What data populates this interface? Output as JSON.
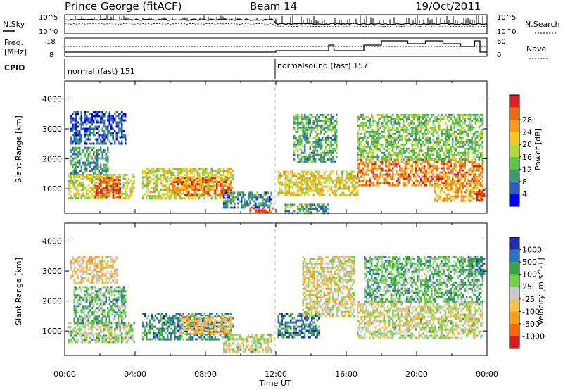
{
  "header": {
    "station": "Prince George (fitACF)",
    "beam": "Beam 14",
    "date": "19/Oct/2011"
  },
  "top_labels": {
    "nsky": "N.Sky",
    "nsearch": "N.Search",
    "freq_line1": "Freq.",
    "freq_line2": "[MHz]",
    "nave": "Nave",
    "cpid": "CPID",
    "nsky_ticks": [
      "10^5",
      "10^0"
    ],
    "nsearch_ticks": [
      "10^5",
      "10^0"
    ],
    "freq_ticks": [
      "18",
      "8"
    ],
    "nave_ticks": [
      "60",
      "0"
    ]
  },
  "cpid_segments": [
    {
      "label": "normal (fast) 151",
      "start_hour": 0
    },
    {
      "label": "normalsound (fast) 157",
      "start_hour": 12
    }
  ],
  "colors": {
    "power": [
      "#0000ff",
      "#2e5fbf",
      "#3f9a6f",
      "#66c24e",
      "#b2d93a",
      "#f0c81e",
      "#f59a1c",
      "#f06a10",
      "#e02020"
    ],
    "velocity": [
      "#e01a1a",
      "#ff6a00",
      "#ff9f19",
      "#f5c24a",
      "#c8c8c8",
      "#6fd04a",
      "#3aa04a",
      "#2c6fc0",
      "#1c2ea8"
    ]
  },
  "chart_data": [
    {
      "name": "power",
      "type": "heatmap",
      "x_range_hours": [
        0,
        24
      ],
      "ylim": [
        180,
        4600
      ],
      "ylabel": "Slant Range [km]",
      "xlabel": "Time UT",
      "yticks": [
        1000,
        2000,
        3000,
        4000
      ],
      "xticks": [
        "00:00",
        "04:00",
        "08:00",
        "12:00",
        "16:00",
        "20:00",
        "00:00"
      ],
      "colorbar_label": "Power [dB]",
      "colorbar_ticks": [
        "4",
        "8",
        "12",
        "16",
        "20",
        "24",
        "28"
      ],
      "regions": [
        {
          "t": [
            0.2,
            4.0
          ],
          "r": [
            700,
            1500
          ],
          "level": 0.55
        },
        {
          "t": [
            0.3,
            2.5
          ],
          "r": [
            1500,
            2400
          ],
          "level": 0.3
        },
        {
          "t": [
            0.3,
            3.5
          ],
          "r": [
            2500,
            3600
          ],
          "level": 0.15
        },
        {
          "t": [
            1.7,
            3.2
          ],
          "r": [
            700,
            1400
          ],
          "level": 0.85
        },
        {
          "t": [
            4.4,
            9.6
          ],
          "r": [
            700,
            1700
          ],
          "level": 0.55
        },
        {
          "t": [
            6.0,
            9.5
          ],
          "r": [
            800,
            1400
          ],
          "level": 0.8
        },
        {
          "t": [
            9.0,
            11.8
          ],
          "r": [
            400,
            900
          ],
          "level": 0.25
        },
        {
          "t": [
            10.5,
            11.9
          ],
          "r": [
            200,
            380
          ],
          "level": 0.9
        },
        {
          "t": [
            12.1,
            16.6
          ],
          "r": [
            800,
            1600
          ],
          "level": 0.6
        },
        {
          "t": [
            12.5,
            15.0
          ],
          "r": [
            200,
            500
          ],
          "level": 0.3
        },
        {
          "t": [
            13.0,
            15.5
          ],
          "r": [
            1900,
            3500
          ],
          "level": 0.35
        },
        {
          "t": [
            16.6,
            23.8
          ],
          "r": [
            1100,
            2000
          ],
          "level": 0.78
        },
        {
          "t": [
            16.6,
            23.8
          ],
          "r": [
            2000,
            3500
          ],
          "level": 0.4
        },
        {
          "t": [
            21.0,
            23.8
          ],
          "r": [
            600,
            1200
          ],
          "level": 0.7
        },
        {
          "t": [
            23.3,
            23.9
          ],
          "r": [
            600,
            1000
          ],
          "level": 0.95
        }
      ]
    },
    {
      "name": "velocity",
      "type": "heatmap",
      "x_range_hours": [
        0,
        24
      ],
      "ylim": [
        180,
        4600
      ],
      "ylabel": "Slant Range [km]",
      "xlabel": "Time UT",
      "yticks": [
        1000,
        2000,
        3000,
        4000
      ],
      "xticks": [
        "00:00",
        "04:00",
        "08:00",
        "12:00",
        "16:00",
        "20:00",
        "00:00"
      ],
      "colorbar_label": "Velocity [m s^-1]",
      "colorbar_ticks": [
        "1000",
        "500",
        "100",
        "25",
        "-25",
        "-100",
        "-500",
        "-1000"
      ],
      "regions": [
        {
          "t": [
            0.2,
            4.0
          ],
          "r": [
            600,
            1300
          ],
          "level": 0.45
        },
        {
          "t": [
            0.5,
            3.5
          ],
          "r": [
            1300,
            2500
          ],
          "level": 0.35
        },
        {
          "t": [
            0.3,
            3.0
          ],
          "r": [
            2600,
            3500
          ],
          "level": 0.6
        },
        {
          "t": [
            4.4,
            9.6
          ],
          "r": [
            700,
            1600
          ],
          "level": 0.25
        },
        {
          "t": [
            6.5,
            9.5
          ],
          "r": [
            900,
            1500
          ],
          "level": 0.65
        },
        {
          "t": [
            9.0,
            11.8
          ],
          "r": [
            300,
            900
          ],
          "level": 0.5
        },
        {
          "t": [
            12.1,
            14.5
          ],
          "r": [
            800,
            1600
          ],
          "level": 0.2
        },
        {
          "t": [
            13.5,
            16.5
          ],
          "r": [
            1500,
            3500
          ],
          "level": 0.55
        },
        {
          "t": [
            16.6,
            23.8
          ],
          "r": [
            800,
            2000
          ],
          "level": 0.5
        },
        {
          "t": [
            17.0,
            23.8
          ],
          "r": [
            2000,
            3500
          ],
          "level": 0.35
        },
        {
          "t": [
            23.0,
            23.9
          ],
          "r": [
            2800,
            3500
          ],
          "level": 0.25
        }
      ]
    }
  ]
}
